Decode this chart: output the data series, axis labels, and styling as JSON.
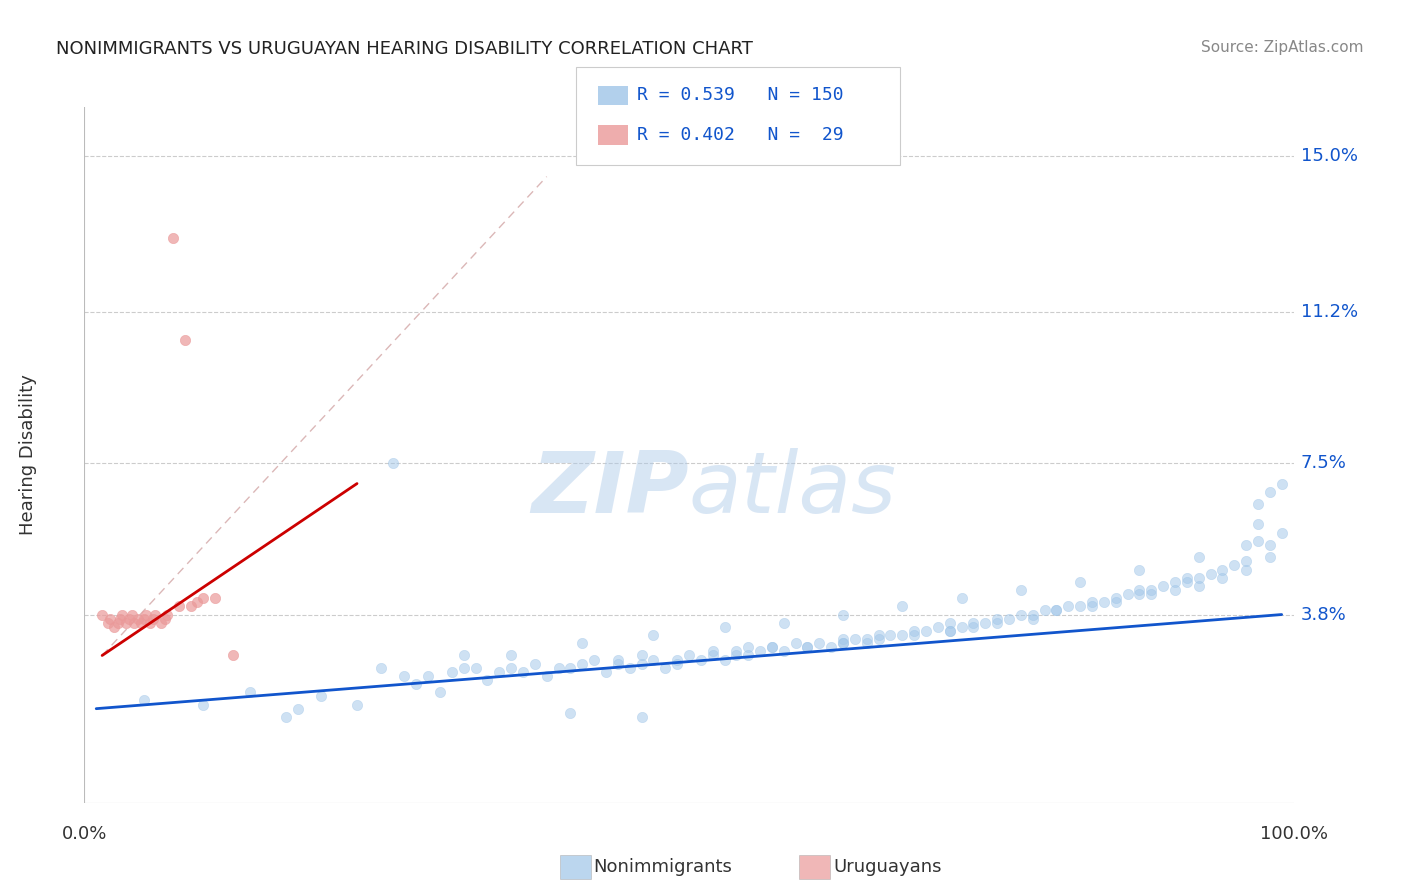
{
  "title": "NONIMMIGRANTS VS URUGUAYAN HEARING DISABILITY CORRELATION CHART",
  "source": "Source: ZipAtlas.com",
  "ylabel": "Hearing Disability",
  "y_tick_labels": [
    "3.8%",
    "7.5%",
    "11.2%",
    "15.0%"
  ],
  "y_tick_values": [
    0.038,
    0.075,
    0.112,
    0.15
  ],
  "x_tick_label_left": "0.0%",
  "x_tick_label_right": "100.0%",
  "xlim": [
    -0.01,
    1.01
  ],
  "ylim": [
    -0.008,
    0.162
  ],
  "background_color": "#ffffff",
  "grid_color": "#cccccc",
  "watermark_zip": "ZIP",
  "watermark_atlas": "atlas",
  "blue_color": "#9fc5e8",
  "blue_line_color": "#1155cc",
  "pink_color": "#ea9999",
  "pink_line_color": "#cc0000",
  "label1": "Nonimmigrants",
  "label2": "Uruguayans",
  "legend_text_color": "#1155cc",
  "blue_line_x": [
    0.0,
    1.0
  ],
  "blue_line_y": [
    0.015,
    0.038
  ],
  "pink_line_x": [
    0.005,
    0.22
  ],
  "pink_line_y": [
    0.028,
    0.07
  ],
  "blue_scatter_x": [
    0.04,
    0.09,
    0.13,
    0.17,
    0.19,
    0.22,
    0.25,
    0.27,
    0.29,
    0.31,
    0.33,
    0.35,
    0.36,
    0.38,
    0.4,
    0.41,
    0.43,
    0.44,
    0.45,
    0.46,
    0.47,
    0.48,
    0.49,
    0.5,
    0.51,
    0.52,
    0.53,
    0.54,
    0.55,
    0.55,
    0.56,
    0.57,
    0.58,
    0.59,
    0.6,
    0.61,
    0.62,
    0.63,
    0.63,
    0.64,
    0.65,
    0.66,
    0.66,
    0.67,
    0.68,
    0.69,
    0.7,
    0.71,
    0.72,
    0.72,
    0.73,
    0.74,
    0.75,
    0.76,
    0.77,
    0.78,
    0.79,
    0.8,
    0.81,
    0.82,
    0.83,
    0.84,
    0.85,
    0.86,
    0.87,
    0.88,
    0.88,
    0.89,
    0.9,
    0.91,
    0.92,
    0.92,
    0.93,
    0.94,
    0.95,
    0.96,
    0.97,
    0.97,
    0.98,
    0.98,
    0.99,
    0.99,
    1.0,
    1.0,
    0.24,
    0.28,
    0.3,
    0.32,
    0.34,
    0.37,
    0.39,
    0.42,
    0.44,
    0.46,
    0.49,
    0.52,
    0.54,
    0.57,
    0.6,
    0.63,
    0.65,
    0.69,
    0.72,
    0.74,
    0.76,
    0.79,
    0.81,
    0.84,
    0.86,
    0.89,
    0.91,
    0.93,
    0.95,
    0.97,
    0.99,
    0.26,
    0.31,
    0.35,
    0.41,
    0.47,
    0.53,
    0.58,
    0.63,
    0.68,
    0.73,
    0.78,
    0.83,
    0.88,
    0.93,
    0.98,
    0.16,
    0.4,
    0.46
  ],
  "blue_scatter_y": [
    0.017,
    0.016,
    0.019,
    0.015,
    0.018,
    0.016,
    0.075,
    0.021,
    0.019,
    0.028,
    0.022,
    0.025,
    0.024,
    0.023,
    0.025,
    0.026,
    0.024,
    0.027,
    0.025,
    0.026,
    0.027,
    0.025,
    0.026,
    0.028,
    0.027,
    0.028,
    0.027,
    0.029,
    0.03,
    0.028,
    0.029,
    0.03,
    0.029,
    0.031,
    0.03,
    0.031,
    0.03,
    0.032,
    0.031,
    0.032,
    0.031,
    0.033,
    0.032,
    0.033,
    0.033,
    0.034,
    0.034,
    0.035,
    0.034,
    0.036,
    0.035,
    0.036,
    0.036,
    0.037,
    0.037,
    0.038,
    0.038,
    0.039,
    0.039,
    0.04,
    0.04,
    0.041,
    0.041,
    0.042,
    0.043,
    0.043,
    0.044,
    0.044,
    0.045,
    0.046,
    0.046,
    0.047,
    0.047,
    0.048,
    0.049,
    0.05,
    0.051,
    0.055,
    0.06,
    0.065,
    0.055,
    0.068,
    0.058,
    0.07,
    0.025,
    0.023,
    0.024,
    0.025,
    0.024,
    0.026,
    0.025,
    0.027,
    0.026,
    0.028,
    0.027,
    0.029,
    0.028,
    0.03,
    0.03,
    0.031,
    0.032,
    0.033,
    0.034,
    0.035,
    0.036,
    0.037,
    0.039,
    0.04,
    0.041,
    0.043,
    0.044,
    0.045,
    0.047,
    0.049,
    0.052,
    0.023,
    0.025,
    0.028,
    0.031,
    0.033,
    0.035,
    0.036,
    0.038,
    0.04,
    0.042,
    0.044,
    0.046,
    0.049,
    0.052,
    0.056,
    0.013,
    0.014,
    0.013
  ],
  "pink_scatter_x": [
    0.005,
    0.01,
    0.012,
    0.015,
    0.018,
    0.02,
    0.022,
    0.025,
    0.028,
    0.03,
    0.032,
    0.035,
    0.038,
    0.04,
    0.042,
    0.045,
    0.048,
    0.05,
    0.055,
    0.058,
    0.06,
    0.065,
    0.07,
    0.075,
    0.08,
    0.085,
    0.09,
    0.1,
    0.115
  ],
  "pink_scatter_y": [
    0.038,
    0.036,
    0.037,
    0.035,
    0.036,
    0.037,
    0.038,
    0.036,
    0.037,
    0.038,
    0.036,
    0.037,
    0.036,
    0.037,
    0.038,
    0.036,
    0.037,
    0.038,
    0.036,
    0.037,
    0.038,
    0.13,
    0.04,
    0.105,
    0.04,
    0.041,
    0.042,
    0.042,
    0.028
  ]
}
